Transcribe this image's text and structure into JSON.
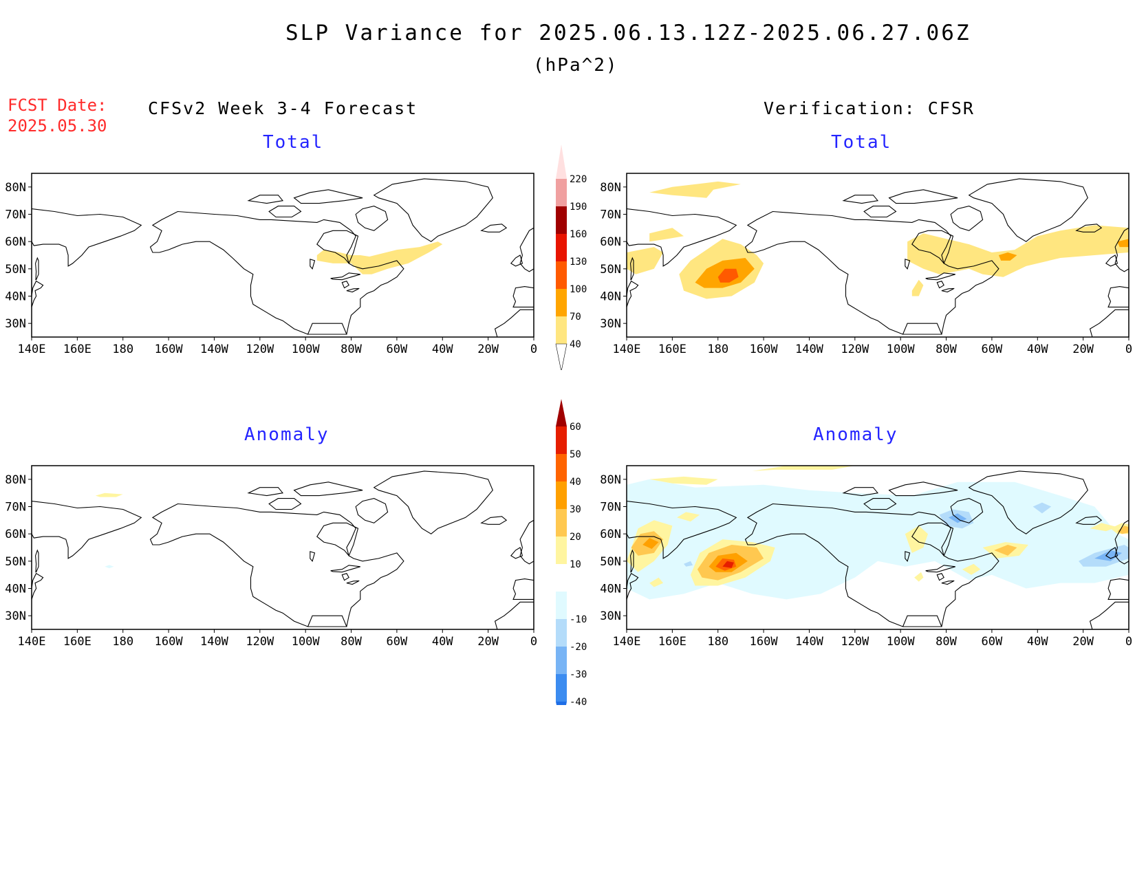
{
  "header": {
    "title": "SLP Variance for 2025.06.13.12Z-2025.06.27.06Z",
    "units": "(hPa^2)",
    "fcst_label": "FCST Date:",
    "fcst_date": "2025.05.30",
    "left_column": "CFSv2 Week 3-4 Forecast",
    "right_column": "Verification: CFSR"
  },
  "panels": {
    "fcst_total": {
      "title": "Total"
    },
    "obs_total": {
      "title": "Total"
    },
    "fcst_anom": {
      "title": "Anomaly"
    },
    "obs_anom": {
      "title": "Anomaly"
    }
  },
  "axes": {
    "lon_ticks": [
      "140E",
      "160E",
      "180",
      "160W",
      "140W",
      "120W",
      "100W",
      "80W",
      "60W",
      "40W",
      "20W",
      "0"
    ],
    "lat_ticks": [
      "80N",
      "70N",
      "60N",
      "50N",
      "40N",
      "30N"
    ],
    "lon_range": [
      140,
      360
    ],
    "lat_range": [
      25,
      85
    ]
  },
  "legends": {
    "total": {
      "labels": [
        "40",
        "70",
        "100",
        "130",
        "160",
        "190",
        "220"
      ],
      "colors": [
        "#ffe680",
        "#ffa500",
        "#ff5a00",
        "#e81400",
        "#a00000",
        "#f0a0a0",
        "#ffe0e0"
      ]
    },
    "anomaly": {
      "labels": [
        "-40",
        "-30",
        "-20",
        "-10",
        "10",
        "20",
        "30",
        "40",
        "50",
        "60"
      ],
      "colors": [
        "#1e6ee6",
        "#3c8cf0",
        "#78b4f5",
        "#b4dcfa",
        "#e0faff",
        "#ffffff",
        "#fff5a0",
        "#ffc850",
        "#ffa000",
        "#ff6400",
        "#e61e00",
        "#a00000"
      ]
    }
  },
  "colors": {
    "accent_red": "#ff2b2b",
    "panel_title_blue": "#2424ff"
  }
}
